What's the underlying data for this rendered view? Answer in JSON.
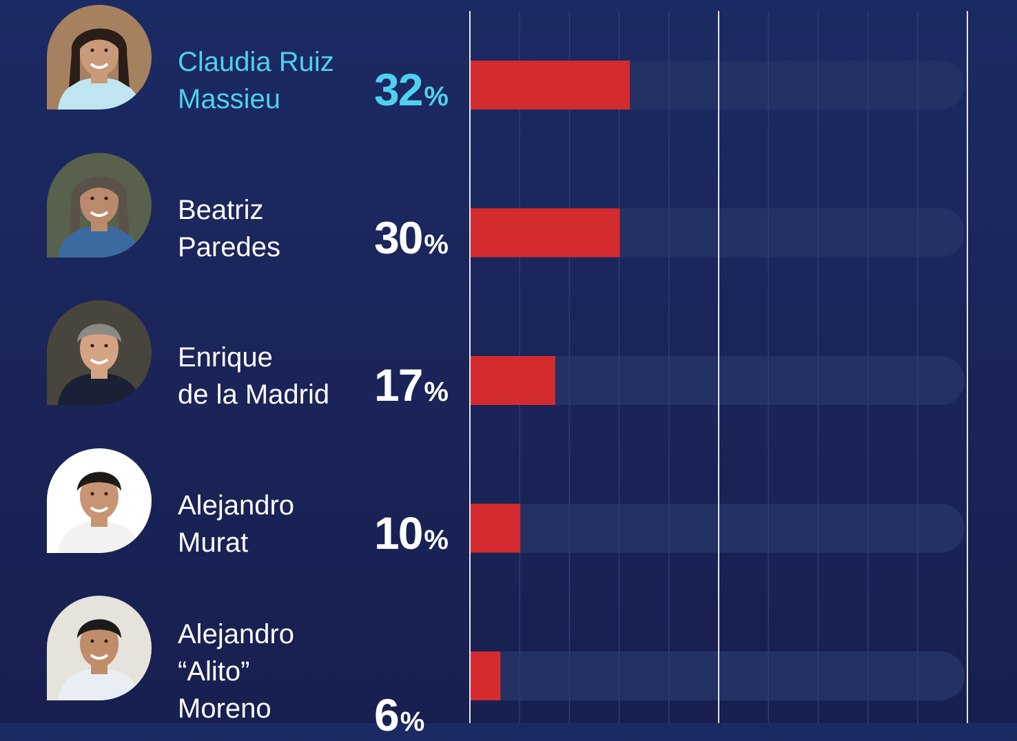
{
  "colors": {
    "background": "#1b2659",
    "bar": "#d42b2f",
    "track": "#243164",
    "grid_major": "#e6e8ef",
    "grid_minor": "#2f3c72",
    "highlight": "#4fd0ee",
    "text": "#ffffff"
  },
  "chart_data": {
    "type": "bar",
    "orientation": "horizontal",
    "unit": "%",
    "xlim": [
      0,
      100
    ],
    "grid": true,
    "categories": [
      "Claudia Ruiz\nMassieu",
      "Beatriz\nParedes",
      "Enrique\nde la Madrid",
      "Alejandro\nMurat",
      "Alejandro\n“Alito”\nMoreno"
    ],
    "values": [
      32,
      30,
      17,
      10,
      6
    ],
    "value_labels": [
      "32",
      "30",
      "17",
      "10",
      "6"
    ],
    "highlight_index": 0
  },
  "candidates": [
    {
      "name": "Claudia Ruiz\nMassieu",
      "value_label": "32",
      "percent_sign": "%",
      "photo_icon": "woman-portrait-icon"
    },
    {
      "name": "Beatriz\nParedes",
      "value_label": "30",
      "percent_sign": "%",
      "photo_icon": "woman-portrait-icon"
    },
    {
      "name": "Enrique\nde la Madrid",
      "value_label": "17",
      "percent_sign": "%",
      "photo_icon": "man-portrait-icon"
    },
    {
      "name": "Alejandro\nMurat",
      "value_label": "10",
      "percent_sign": "%",
      "photo_icon": "man-portrait-icon"
    },
    {
      "name": "Alejandro\n“Alito”\nMoreno",
      "value_label": "6",
      "percent_sign": "%",
      "photo_icon": "man-portrait-icon"
    }
  ]
}
